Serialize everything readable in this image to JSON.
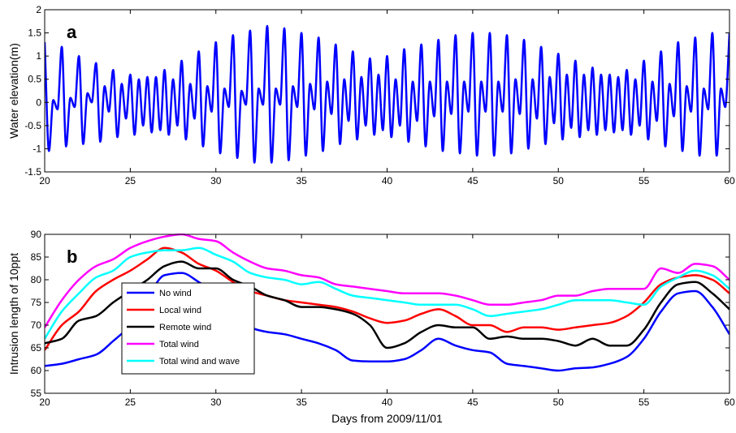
{
  "chart_data": [
    {
      "type": "line",
      "label": "a",
      "ylabel": "Water elevation(m)",
      "xlim": [
        20,
        60
      ],
      "xticks": [
        20,
        25,
        30,
        35,
        40,
        45,
        50,
        55,
        60
      ],
      "ylim": [
        -1.5,
        2
      ],
      "yticks": [
        -1.5,
        -1,
        -0.5,
        0,
        0.5,
        1,
        1.5,
        2
      ],
      "x": [
        20,
        20.25,
        20.5,
        20.75,
        21,
        21.25,
        21.5,
        21.75,
        22,
        22.25,
        22.5,
        22.75,
        23,
        23.25,
        23.5,
        23.75,
        24,
        24.25,
        24.5,
        24.75,
        25,
        25.25,
        25.5,
        25.75,
        26,
        26.25,
        26.5,
        26.75,
        27,
        27.25,
        27.5,
        27.75,
        28,
        28.25,
        28.5,
        28.75,
        29,
        29.25,
        29.5,
        29.75,
        30,
        30.25,
        30.5,
        30.75,
        31,
        31.25,
        31.5,
        31.75,
        32,
        32.25,
        32.5,
        32.75,
        33,
        33.25,
        33.5,
        33.75,
        34,
        34.25,
        34.5,
        34.75,
        35,
        35.25,
        35.5,
        35.75,
        36,
        36.25,
        36.5,
        36.75,
        37,
        37.25,
        37.5,
        37.75,
        38,
        38.25,
        38.5,
        38.75,
        39,
        39.25,
        39.5,
        39.75,
        40,
        40.25,
        40.5,
        40.75,
        41,
        41.25,
        41.5,
        41.75,
        42,
        42.25,
        42.5,
        42.75,
        43,
        43.25,
        43.5,
        43.75,
        44,
        44.25,
        44.5,
        44.75,
        45,
        45.25,
        45.5,
        45.75,
        46,
        46.25,
        46.5,
        46.75,
        47,
        47.25,
        47.5,
        47.75,
        48,
        48.25,
        48.5,
        48.75,
        49,
        49.25,
        49.5,
        49.75,
        50,
        50.25,
        50.5,
        50.75,
        51,
        51.25,
        51.5,
        51.75,
        52,
        52.25,
        52.5,
        52.75,
        53,
        53.25,
        53.5,
        53.75,
        54,
        54.25,
        54.5,
        54.75,
        55,
        55.25,
        55.5,
        55.75,
        56,
        56.25,
        56.5,
        56.75,
        57,
        57.25,
        57.5,
        57.75,
        58,
        58.25,
        58.5,
        58.75,
        59,
        59.25,
        59.5,
        59.75,
        60
      ],
      "series": [
        {
          "color": "#0000ff",
          "values": [
            1.3,
            -1.05,
            0.05,
            -0.15,
            1.2,
            -0.95,
            0.1,
            -0.1,
            1.0,
            -0.9,
            0.2,
            0.0,
            0.85,
            -0.85,
            0.35,
            -0.2,
            0.7,
            -0.75,
            0.4,
            -0.35,
            0.6,
            -0.7,
            0.5,
            -0.5,
            0.55,
            -0.65,
            0.55,
            -0.6,
            0.7,
            -0.7,
            0.5,
            -0.5,
            0.9,
            -0.8,
            0.4,
            -0.35,
            1.1,
            -0.95,
            0.35,
            -0.2,
            1.3,
            -1.1,
            0.3,
            -0.1,
            1.45,
            -1.2,
            0.25,
            -0.05,
            1.55,
            -1.3,
            0.3,
            -0.05,
            1.65,
            -1.3,
            0.3,
            -0.05,
            1.6,
            -1.25,
            0.35,
            -0.1,
            1.5,
            -1.15,
            0.4,
            -0.15,
            1.4,
            -1.05,
            0.45,
            -0.25,
            1.25,
            -0.9,
            0.5,
            -0.4,
            1.1,
            -0.8,
            0.55,
            -0.5,
            0.95,
            -0.7,
            0.6,
            -0.6,
            1.0,
            -0.75,
            0.5,
            -0.5,
            1.15,
            -0.85,
            0.45,
            -0.4,
            1.25,
            -0.95,
            0.45,
            -0.3,
            1.35,
            -1.05,
            0.45,
            -0.25,
            1.45,
            -1.1,
            0.45,
            -0.2,
            1.5,
            -1.15,
            0.45,
            -0.2,
            1.5,
            -1.15,
            0.45,
            -0.2,
            1.45,
            -1.1,
            0.5,
            -0.25,
            1.35,
            -1.0,
            0.5,
            -0.35,
            1.2,
            -0.9,
            0.55,
            -0.45,
            1.05,
            -0.8,
            0.6,
            -0.55,
            0.9,
            -0.75,
            0.6,
            -0.6,
            0.75,
            -0.7,
            0.6,
            -0.6,
            0.6,
            -0.65,
            0.55,
            -0.6,
            0.7,
            -0.7,
            0.5,
            -0.5,
            0.9,
            -0.8,
            0.45,
            -0.4,
            1.1,
            -0.95,
            0.4,
            -0.3,
            1.3,
            -1.05,
            0.35,
            -0.2,
            1.4,
            -1.15,
            0.3,
            -0.15,
            1.5,
            -1.15,
            0.3,
            -0.1,
            1.5
          ]
        }
      ]
    },
    {
      "type": "line",
      "label": "b",
      "ylabel": "Intrusion length of 10ppt",
      "xlabel": "Days from 2009/11/01",
      "xlim": [
        20,
        60
      ],
      "xticks": [
        20,
        25,
        30,
        35,
        40,
        45,
        50,
        55,
        60
      ],
      "ylim": [
        55,
        90
      ],
      "yticks": [
        55,
        60,
        65,
        70,
        75,
        80,
        85,
        90
      ],
      "legend": "lower left",
      "x": [
        20,
        21,
        22,
        23,
        24,
        25,
        26,
        27,
        28,
        29,
        30,
        31,
        32,
        33,
        34,
        35,
        36,
        37,
        38,
        39,
        40,
        41,
        42,
        43,
        44,
        45,
        46,
        47,
        48,
        49,
        50,
        51,
        52,
        53,
        54,
        55,
        56,
        57,
        58,
        59,
        60
      ],
      "series": [
        {
          "name": "No wind",
          "color": "#0000ff",
          "values": [
            61,
            61.5,
            62.5,
            63.5,
            66.5,
            70,
            76,
            81,
            81.5,
            79.5,
            77,
            73,
            69.5,
            68.5,
            68,
            67,
            66,
            64.5,
            62.2,
            62,
            62,
            62.5,
            64.5,
            67,
            65.5,
            64.5,
            64,
            61.5,
            61,
            60.5,
            60,
            60.5,
            60.7,
            61.5,
            63,
            67,
            73,
            77,
            77.5,
            74,
            68
          ]
        },
        {
          "name": "Local wind",
          "color": "#ff0000",
          "values": [
            64.5,
            70,
            73,
            77.5,
            80,
            82,
            84.5,
            87,
            86,
            83.5,
            82,
            79.5,
            77.5,
            76.5,
            75.5,
            75,
            74.5,
            74,
            73,
            71.5,
            70.5,
            71,
            72.5,
            73.5,
            72,
            70,
            70,
            68.5,
            69.5,
            69.5,
            69,
            69.5,
            70,
            70.5,
            72,
            75,
            79,
            80.5,
            81,
            80,
            77
          ]
        },
        {
          "name": "Remote wind",
          "color": "#000000",
          "values": [
            66,
            67,
            71,
            72,
            75,
            77.5,
            80,
            83,
            84,
            82.5,
            82.5,
            80,
            78.5,
            76.5,
            75.5,
            74,
            74,
            73.5,
            72.5,
            70,
            65,
            66,
            68.5,
            70,
            69.5,
            69.5,
            67,
            67.5,
            67,
            67,
            66.5,
            65.5,
            67,
            65.5,
            65.5,
            69,
            75,
            79,
            79.5,
            77,
            73.5
          ]
        },
        {
          "name": "Total wind",
          "color": "#ff00ff",
          "values": [
            69.5,
            75.5,
            80,
            83,
            84.5,
            87,
            88.5,
            89.5,
            90,
            89,
            88.5,
            86,
            84,
            82.5,
            82,
            81,
            80.5,
            79,
            78.5,
            78,
            77.5,
            77,
            77,
            77,
            76.5,
            75.5,
            74.5,
            74.5,
            75,
            75.5,
            76.5,
            76.5,
            77.5,
            78,
            78,
            78,
            82.5,
            81.5,
            83.5,
            83,
            80
          ]
        },
        {
          "name": "Total wind and wave",
          "color": "#00ffff",
          "values": [
            67,
            73,
            77,
            80.5,
            82,
            85,
            86,
            86.5,
            86.5,
            87,
            85.5,
            84,
            81.5,
            80.5,
            80,
            79,
            79.5,
            78,
            76.5,
            76,
            75.5,
            75,
            74.5,
            74.5,
            74.5,
            73.5,
            72,
            72.5,
            73,
            73.5,
            74.5,
            75.5,
            75.5,
            75.5,
            75,
            74.5,
            78.5,
            80.5,
            82,
            81,
            78
          ]
        }
      ]
    }
  ]
}
